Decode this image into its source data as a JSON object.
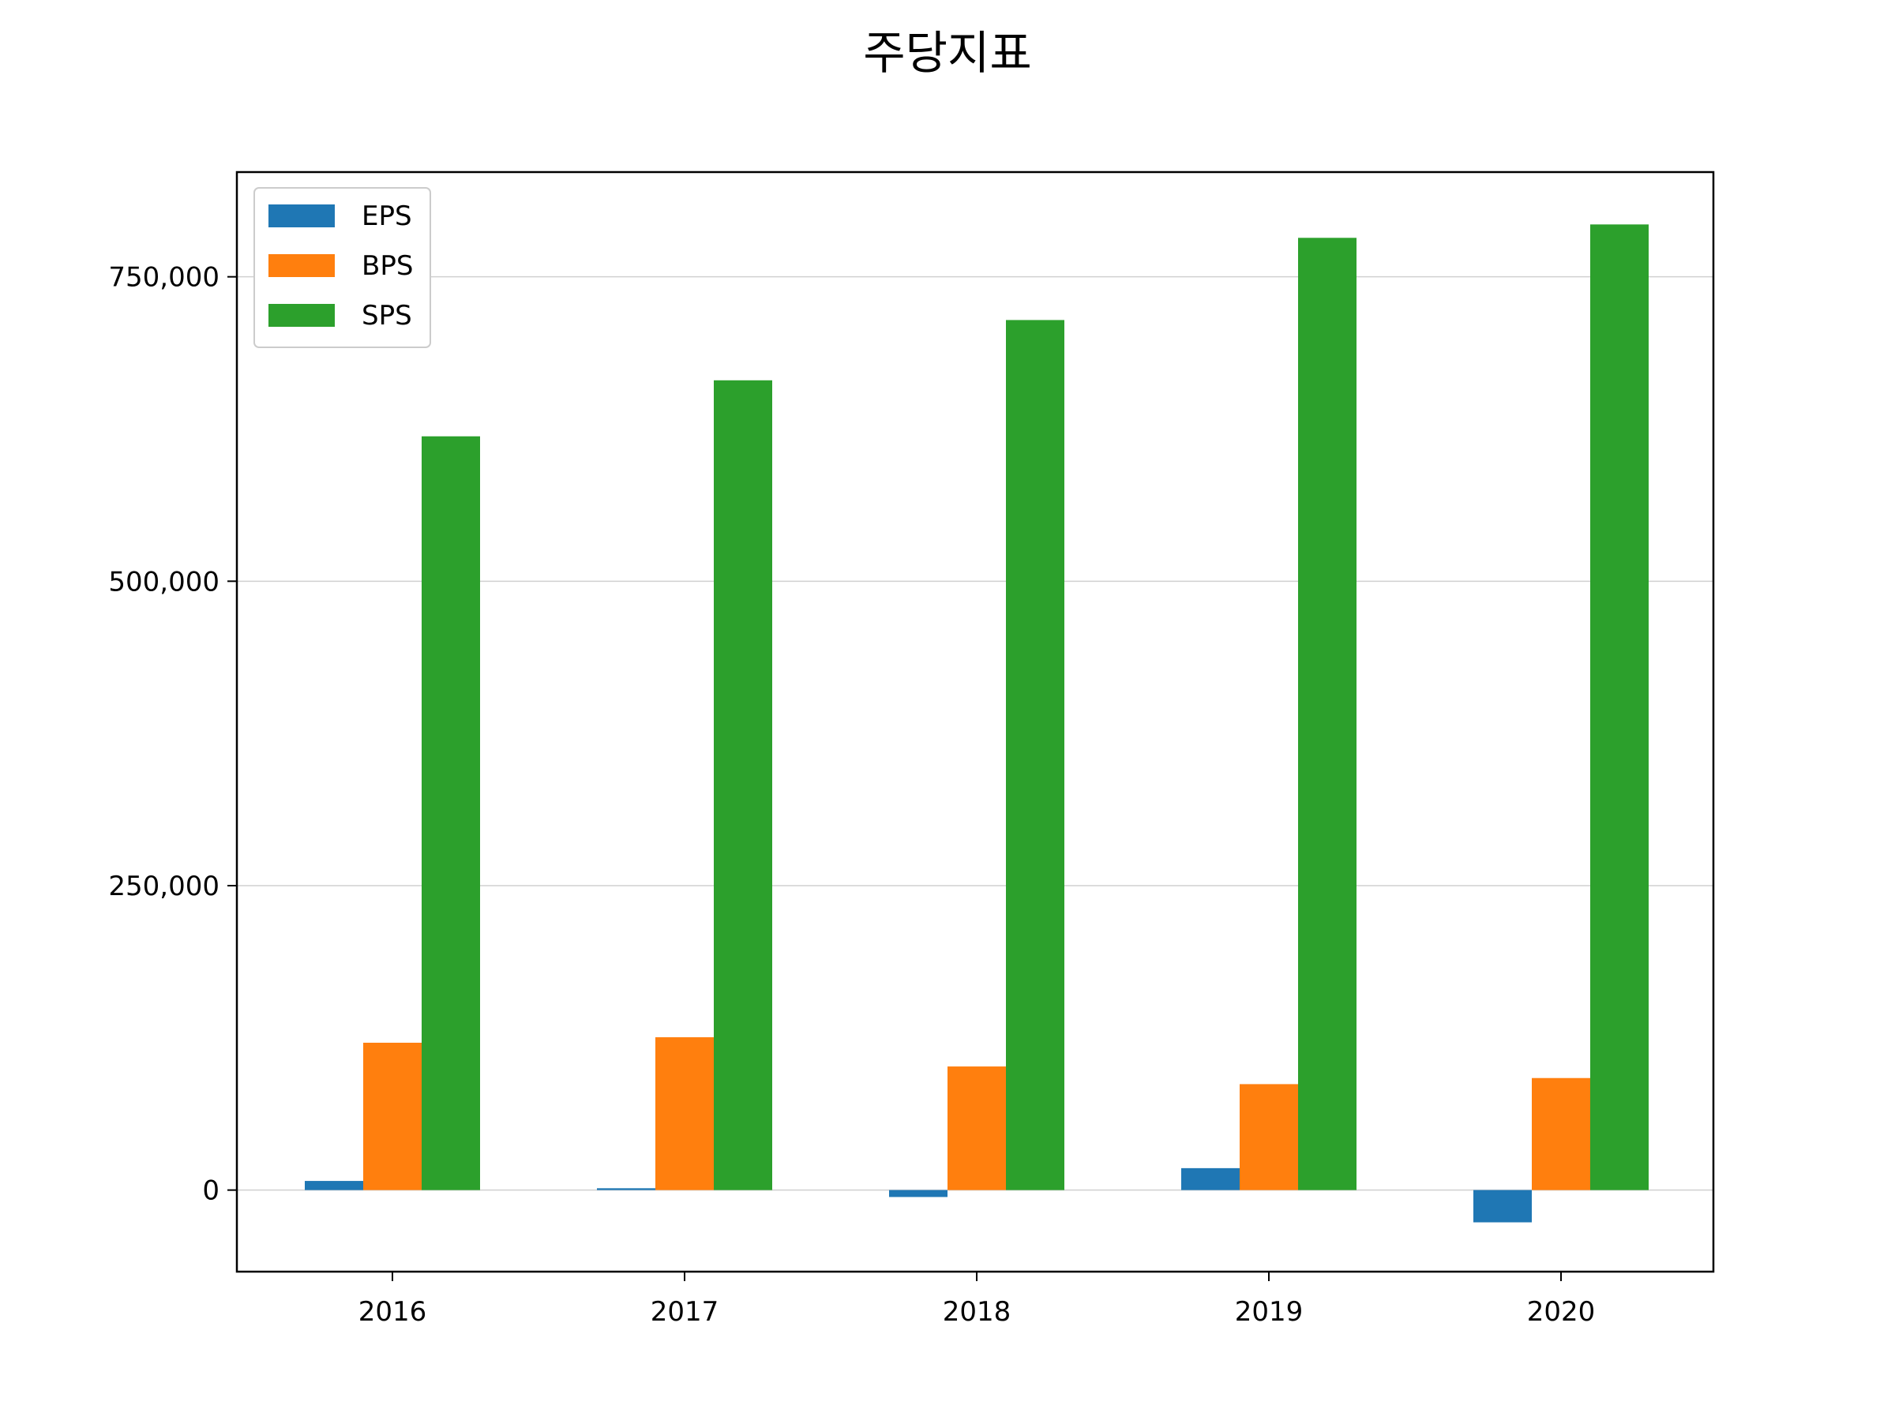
{
  "chart_data": {
    "type": "bar",
    "title": "주당지표",
    "xlabel": "",
    "ylabel": "",
    "categories": [
      "2016",
      "2017",
      "2018",
      "2019",
      "2020"
    ],
    "series": [
      {
        "name": "EPS",
        "color": "#1f77b4",
        "values": [
          7500,
          1500,
          -5700,
          18000,
          -26500
        ]
      },
      {
        "name": "BPS",
        "color": "#ff7f0e",
        "values": [
          121000,
          125500,
          101500,
          87000,
          92000
        ]
      },
      {
        "name": "SPS",
        "color": "#2ca02c",
        "values": [
          619000,
          665000,
          714500,
          782000,
          793000
        ]
      }
    ],
    "ylim": [
      -67000,
      836000
    ],
    "yticks": [
      0,
      250000,
      500000,
      750000
    ],
    "ytick_labels": [
      "0",
      "250,000",
      "500,000",
      "750,000"
    ],
    "grid": {
      "y": true,
      "x": false
    },
    "legend": {
      "placement": "upper-left",
      "entries": [
        "EPS",
        "BPS",
        "SPS"
      ]
    }
  }
}
